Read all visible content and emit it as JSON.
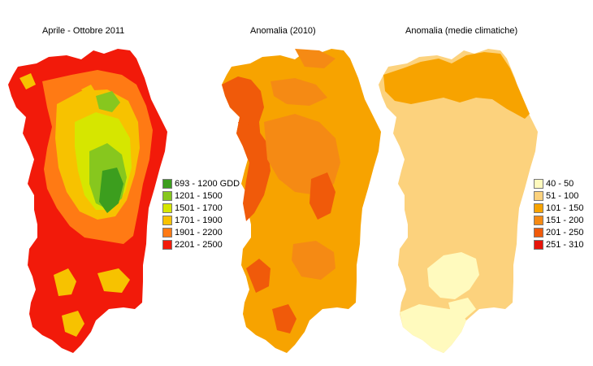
{
  "maps": [
    {
      "title": "Aprile - Ottobre 2011",
      "legend": [
        {
          "label": "693 - 1200 GDD",
          "color": "#3c9e1e"
        },
        {
          "label": "1201 - 1500",
          "color": "#87c71e"
        },
        {
          "label": "1501 - 1700",
          "color": "#d6e600"
        },
        {
          "label": "1701 - 1900",
          "color": "#f7c200"
        },
        {
          "label": "1901 - 2200",
          "color": "#ff7a14"
        },
        {
          "label": "2201 - 2500",
          "color": "#f21a0a"
        }
      ]
    },
    {
      "title": "Anomalia (2010)"
    },
    {
      "title": "Anomalia (medie climatiche)",
      "legend": [
        {
          "label": "40 - 50",
          "color": "#fffabe"
        },
        {
          "label": "51 - 100",
          "color": "#fcd27d"
        },
        {
          "label": "101 - 150",
          "color": "#f7a300"
        },
        {
          "label": "151 - 200",
          "color": "#f58a14"
        },
        {
          "label": "201 - 250",
          "color": "#f05a0a"
        },
        {
          "label": "251 - 310",
          "color": "#e6140a"
        }
      ]
    }
  ]
}
